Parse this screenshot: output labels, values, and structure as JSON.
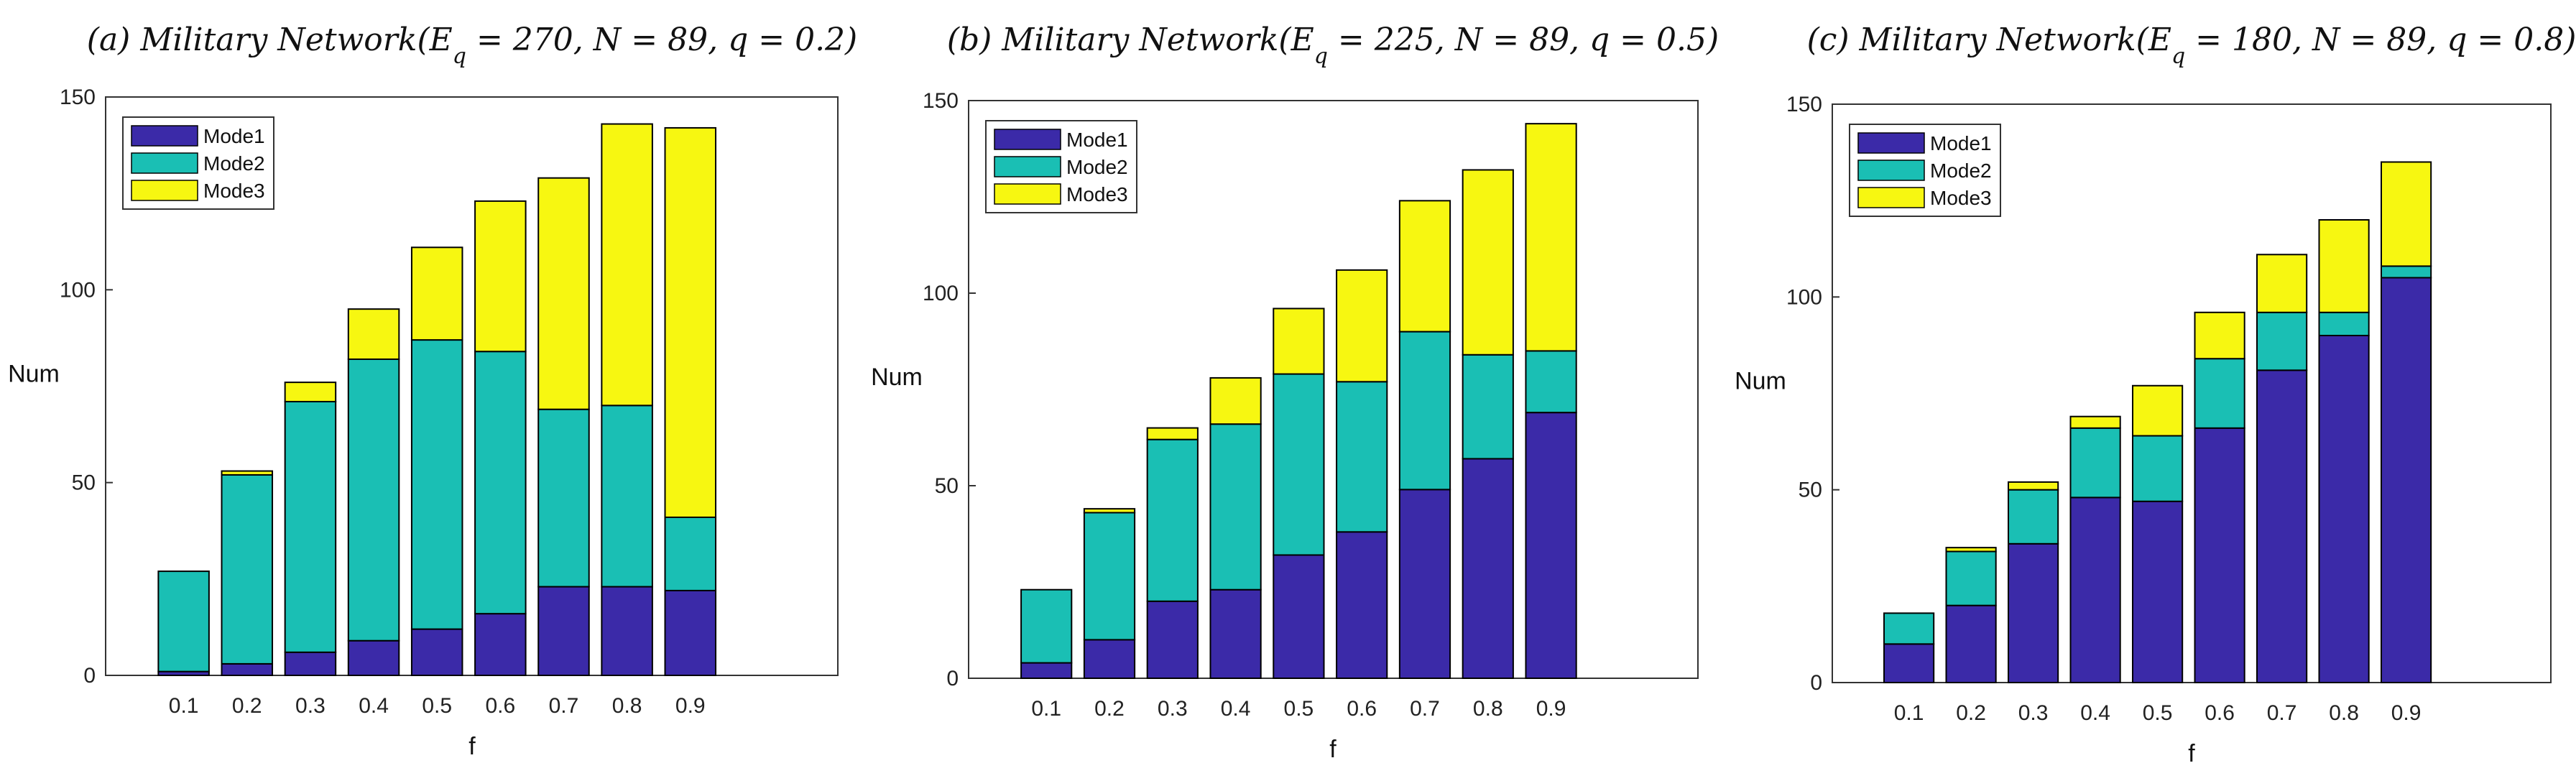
{
  "colors": {
    "mode1": "#3b2aa8",
    "mode2": "#1abfb4",
    "mode3": "#f7f711",
    "frame": "#333333"
  },
  "chart_data": [
    {
      "type": "bar",
      "stacked": true,
      "title": "(a) Military Network(E_q=270, N=89, q=0.2)",
      "title_parts": {
        "label": "(a)",
        "name": "Military Network",
        "eq": "270",
        "n": "89",
        "q": "0.2"
      },
      "xlabel": "f",
      "ylabel": "Num",
      "categories": [
        "0.1",
        "0.2",
        "0.3",
        "0.4",
        "0.5",
        "0.6",
        "0.7",
        "0.8",
        "0.9"
      ],
      "ylim": [
        0,
        150
      ],
      "yticks": [
        0,
        50,
        100,
        150
      ],
      "legend": {
        "position": "top-left",
        "entries": [
          "Mode1",
          "Mode2",
          "Mode3"
        ]
      },
      "series": [
        {
          "name": "Mode1",
          "values": [
            1,
            3,
            6,
            9,
            12,
            16,
            23,
            23,
            22
          ]
        },
        {
          "name": "Mode2",
          "values": [
            26,
            49,
            65,
            73,
            75,
            68,
            46,
            47,
            19
          ]
        },
        {
          "name": "Mode3",
          "values": [
            0,
            1,
            5,
            13,
            24,
            39,
            60,
            73,
            101
          ]
        }
      ]
    },
    {
      "type": "bar",
      "stacked": true,
      "title": "(b) Military Network(E_q=225, N=89, q=0.5)",
      "title_parts": {
        "label": "(b)",
        "name": "Military Network",
        "eq": "225",
        "n": "89",
        "q": "0.5"
      },
      "xlabel": "f",
      "ylabel": "Num",
      "categories": [
        "0.1",
        "0.2",
        "0.3",
        "0.4",
        "0.5",
        "0.6",
        "0.7",
        "0.8",
        "0.9"
      ],
      "ylim": [
        0,
        150
      ],
      "yticks": [
        0,
        50,
        100,
        150
      ],
      "legend": {
        "position": "top-left",
        "entries": [
          "Mode1",
          "Mode2",
          "Mode3"
        ]
      },
      "series": [
        {
          "name": "Mode1",
          "values": [
            4,
            10,
            20,
            23,
            32,
            38,
            49,
            57,
            69
          ]
        },
        {
          "name": "Mode2",
          "values": [
            19,
            33,
            42,
            43,
            47,
            39,
            41,
            27,
            16
          ]
        },
        {
          "name": "Mode3",
          "values": [
            0,
            1,
            3,
            12,
            17,
            29,
            34,
            48,
            59
          ]
        }
      ]
    },
    {
      "type": "bar",
      "stacked": true,
      "title": "(c) Military Network(E_q=180, N=89, q=0.8)",
      "title_parts": {
        "label": "(c)",
        "name": "Military Network",
        "eq": "180",
        "n": "89",
        "q": "0.8"
      },
      "xlabel": "f",
      "ylabel": "Num",
      "categories": [
        "0.1",
        "0.2",
        "0.3",
        "0.4",
        "0.5",
        "0.6",
        "0.7",
        "0.8",
        "0.9"
      ],
      "ylim": [
        0,
        150
      ],
      "yticks": [
        0,
        50,
        100,
        150
      ],
      "legend": {
        "position": "top-left",
        "entries": [
          "Mode1",
          "Mode2",
          "Mode3"
        ]
      },
      "series": [
        {
          "name": "Mode1",
          "values": [
            10,
            20,
            36,
            48,
            47,
            66,
            81,
            90,
            105
          ]
        },
        {
          "name": "Mode2",
          "values": [
            8,
            14,
            14,
            18,
            17,
            18,
            15,
            6,
            3
          ]
        },
        {
          "name": "Mode3",
          "values": [
            0,
            1,
            2,
            3,
            13,
            12,
            15,
            24,
            27
          ]
        }
      ]
    }
  ]
}
